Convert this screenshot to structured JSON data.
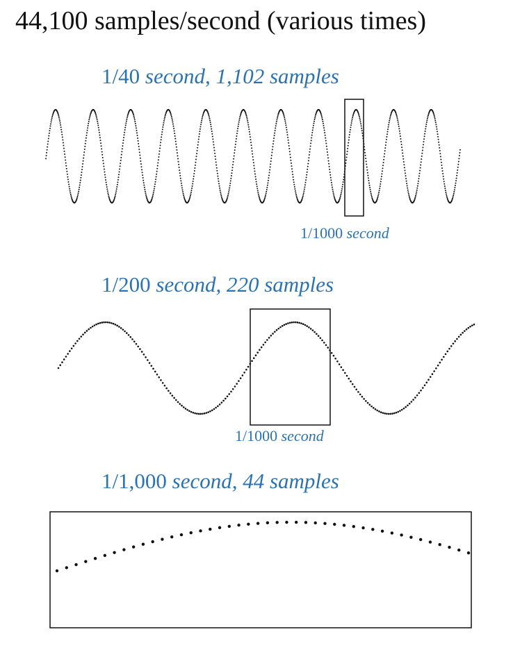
{
  "title": "44,100 samples/second (various times)",
  "sections": [
    {
      "heading_fraction": "1/40",
      "heading_rest": "second, 1,102 samples",
      "duration_seconds": 0.025,
      "sample_count": 1102,
      "zoom_box_label_fraction": "1/1000",
      "zoom_box_label_rest": "second"
    },
    {
      "heading_fraction": "1/200",
      "heading_rest": "second, 220 samples",
      "duration_seconds": 0.005,
      "sample_count": 220,
      "zoom_box_label_fraction": "1/1000",
      "zoom_box_label_rest": "second"
    },
    {
      "heading_fraction": "1/1,000",
      "heading_rest": "second, 44 samples",
      "duration_seconds": 0.001,
      "sample_count": 44
    }
  ],
  "colors": {
    "label_blue": "#2a73b3",
    "title_black": "#111111",
    "wave_black": "#111111"
  }
}
